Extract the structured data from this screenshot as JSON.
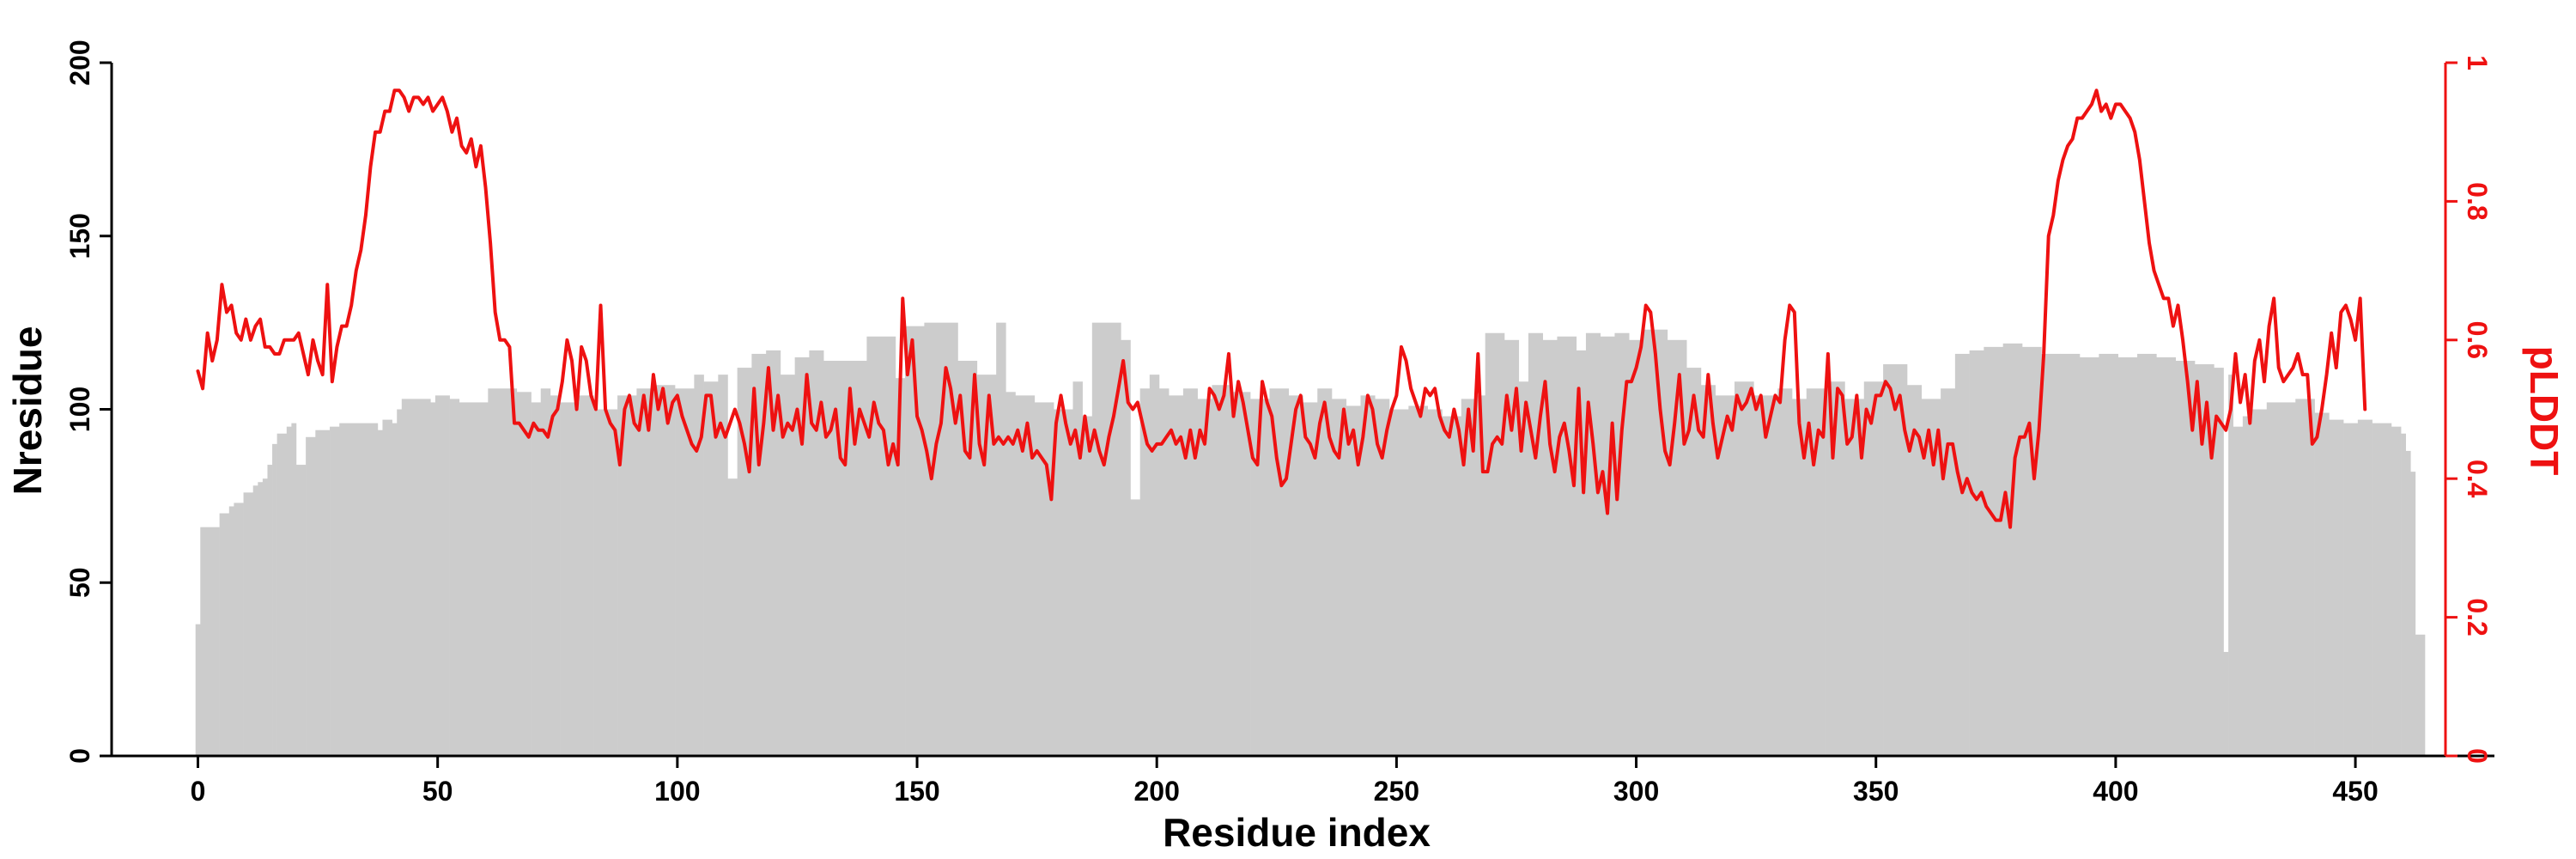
{
  "chart_data": {
    "type": "bar",
    "xlabel": "Residue index",
    "ylabel": "Nresidue",
    "y2label": "pLDDT",
    "xlim": [
      -18,
      479
    ],
    "ylim": [
      0,
      200
    ],
    "y2lim": [
      0,
      1
    ],
    "x_ticks": [
      0,
      50,
      100,
      150,
      200,
      250,
      300,
      350,
      400,
      450
    ],
    "y_ticks": [
      0,
      50,
      100,
      150,
      200
    ],
    "y2_ticks": [
      "0",
      "0.2",
      "0.4",
      "0.6",
      "0.8",
      "1"
    ],
    "grid": false,
    "legend": "none",
    "colors": {
      "bars": "#cccccc",
      "line": "#ee1111",
      "axis": "#000000",
      "right_axis": "#ee1111"
    },
    "series": [
      {
        "type": "bar",
        "axis": "left",
        "description_free": true,
        "segments": [
          [
            0,
            0,
            38
          ],
          [
            1,
            4,
            66
          ],
          [
            5,
            6,
            70
          ],
          [
            7,
            7,
            72
          ],
          [
            8,
            9,
            73
          ],
          [
            10,
            11,
            76
          ],
          [
            12,
            12,
            78
          ],
          [
            13,
            13,
            79
          ],
          [
            14,
            14,
            80
          ],
          [
            15,
            15,
            84
          ],
          [
            16,
            16,
            90
          ],
          [
            17,
            18,
            93
          ],
          [
            19,
            19,
            95
          ],
          [
            20,
            20,
            96
          ],
          [
            21,
            22,
            84
          ],
          [
            23,
            24,
            92
          ],
          [
            25,
            25,
            94
          ],
          [
            26,
            27,
            94
          ],
          [
            28,
            29,
            95
          ],
          [
            30,
            37,
            96
          ],
          [
            38,
            38,
            94
          ],
          [
            39,
            40,
            97
          ],
          [
            41,
            41,
            96
          ],
          [
            42,
            42,
            100
          ],
          [
            43,
            48,
            103
          ],
          [
            49,
            49,
            102
          ],
          [
            50,
            52,
            104
          ],
          [
            53,
            54,
            103
          ],
          [
            55,
            60,
            102
          ],
          [
            61,
            66,
            106
          ],
          [
            67,
            69,
            105
          ],
          [
            70,
            71,
            102
          ],
          [
            72,
            73,
            106
          ],
          [
            74,
            75,
            104
          ],
          [
            76,
            79,
            102
          ],
          [
            80,
            82,
            104
          ],
          [
            83,
            87,
            100
          ],
          [
            88,
            91,
            104
          ],
          [
            92,
            95,
            106
          ],
          [
            96,
            99,
            107
          ],
          [
            100,
            103,
            106
          ],
          [
            104,
            105,
            110
          ],
          [
            106,
            108,
            108
          ],
          [
            109,
            110,
            110
          ],
          [
            111,
            112,
            80
          ],
          [
            113,
            115,
            112
          ],
          [
            116,
            118,
            116
          ],
          [
            119,
            121,
            117
          ],
          [
            122,
            124,
            110
          ],
          [
            125,
            127,
            115
          ],
          [
            128,
            130,
            117
          ],
          [
            131,
            133,
            114
          ],
          [
            134,
            136,
            114
          ],
          [
            137,
            139,
            114
          ],
          [
            140,
            142,
            121
          ],
          [
            143,
            145,
            121
          ],
          [
            146,
            147,
            109
          ],
          [
            148,
            151,
            124
          ],
          [
            152,
            158,
            125
          ],
          [
            159,
            162,
            114
          ],
          [
            163,
            166,
            110
          ],
          [
            167,
            168,
            125
          ],
          [
            169,
            170,
            105
          ],
          [
            171,
            174,
            104
          ],
          [
            175,
            178,
            102
          ],
          [
            179,
            182,
            100
          ],
          [
            183,
            184,
            108
          ],
          [
            185,
            186,
            98
          ],
          [
            187,
            192,
            125
          ],
          [
            193,
            194,
            120
          ],
          [
            195,
            196,
            74
          ],
          [
            197,
            198,
            106
          ],
          [
            199,
            200,
            110
          ],
          [
            201,
            202,
            106
          ],
          [
            203,
            205,
            104
          ],
          [
            206,
            208,
            106
          ],
          [
            209,
            211,
            103
          ],
          [
            212,
            215,
            107
          ],
          [
            216,
            219,
            105
          ],
          [
            220,
            223,
            103
          ],
          [
            224,
            227,
            106
          ],
          [
            228,
            230,
            104
          ],
          [
            231,
            233,
            102
          ],
          [
            234,
            236,
            106
          ],
          [
            237,
            239,
            103
          ],
          [
            240,
            242,
            101
          ],
          [
            243,
            245,
            104
          ],
          [
            246,
            248,
            103
          ],
          [
            249,
            252,
            100
          ],
          [
            253,
            256,
            101
          ],
          [
            257,
            259,
            100
          ],
          [
            260,
            263,
            98
          ],
          [
            264,
            266,
            103
          ],
          [
            267,
            268,
            104
          ],
          [
            269,
            272,
            122
          ],
          [
            273,
            275,
            120
          ],
          [
            276,
            277,
            108
          ],
          [
            278,
            280,
            122
          ],
          [
            281,
            283,
            120
          ],
          [
            284,
            287,
            121
          ],
          [
            288,
            289,
            117
          ],
          [
            290,
            292,
            122
          ],
          [
            293,
            295,
            121
          ],
          [
            296,
            298,
            122
          ],
          [
            299,
            301,
            120
          ],
          [
            302,
            306,
            123
          ],
          [
            307,
            310,
            120
          ],
          [
            311,
            313,
            112
          ],
          [
            314,
            316,
            107
          ],
          [
            317,
            320,
            104
          ],
          [
            321,
            324,
            108
          ],
          [
            325,
            329,
            104
          ],
          [
            330,
            332,
            106
          ],
          [
            333,
            335,
            103
          ],
          [
            336,
            339,
            106
          ],
          [
            340,
            343,
            108
          ],
          [
            344,
            347,
            103
          ],
          [
            348,
            351,
            108
          ],
          [
            352,
            356,
            113
          ],
          [
            357,
            359,
            107
          ],
          [
            360,
            363,
            103
          ],
          [
            364,
            366,
            106
          ],
          [
            367,
            369,
            116
          ],
          [
            370,
            372,
            117
          ],
          [
            373,
            376,
            118
          ],
          [
            377,
            380,
            119
          ],
          [
            381,
            384,
            118
          ],
          [
            385,
            388,
            116
          ],
          [
            389,
            392,
            116
          ],
          [
            393,
            396,
            115
          ],
          [
            397,
            400,
            116
          ],
          [
            401,
            404,
            115
          ],
          [
            405,
            408,
            116
          ],
          [
            409,
            412,
            115
          ],
          [
            413,
            416,
            114
          ],
          [
            417,
            420,
            113
          ],
          [
            421,
            422,
            112
          ],
          [
            423,
            423,
            30
          ],
          [
            424,
            424,
            110
          ],
          [
            425,
            426,
            95
          ],
          [
            427,
            428,
            98
          ],
          [
            429,
            431,
            100
          ],
          [
            432,
            434,
            102
          ],
          [
            435,
            437,
            102
          ],
          [
            438,
            441,
            103
          ],
          [
            442,
            444,
            99
          ],
          [
            445,
            447,
            97
          ],
          [
            448,
            450,
            96
          ],
          [
            451,
            453,
            97
          ],
          [
            454,
            455,
            96
          ],
          [
            456,
            457,
            96
          ],
          [
            458,
            459,
            95
          ],
          [
            460,
            460,
            93
          ],
          [
            461,
            461,
            88
          ],
          [
            462,
            462,
            82
          ],
          [
            463,
            464,
            35
          ]
        ]
      },
      {
        "type": "line",
        "axis": "right",
        "name": "pLDDT",
        "values": [
          0.555,
          0.53,
          0.61,
          0.57,
          0.6,
          0.68,
          0.64,
          0.65,
          0.61,
          0.6,
          0.63,
          0.6,
          0.62,
          0.63,
          0.59,
          0.59,
          0.58,
          0.58,
          0.6,
          0.6,
          0.6,
          0.61,
          0.58,
          0.55,
          0.6,
          0.57,
          0.55,
          0.68,
          0.54,
          0.59,
          0.62,
          0.62,
          0.65,
          0.7,
          0.73,
          0.78,
          0.85,
          0.9,
          0.9,
          0.93,
          0.93,
          0.96,
          0.96,
          0.95,
          0.93,
          0.95,
          0.95,
          0.94,
          0.95,
          0.93,
          0.94,
          0.95,
          0.93,
          0.9,
          0.92,
          0.88,
          0.87,
          0.89,
          0.85,
          0.88,
          0.82,
          0.74,
          0.64,
          0.6,
          0.6,
          0.59,
          0.48,
          0.48,
          0.47,
          0.46,
          0.48,
          0.47,
          0.47,
          0.46,
          0.49,
          0.5,
          0.54,
          0.6,
          0.57,
          0.5,
          0.59,
          0.57,
          0.52,
          0.5,
          0.65,
          0.5,
          0.48,
          0.47,
          0.42,
          0.5,
          0.52,
          0.48,
          0.47,
          0.52,
          0.47,
          0.55,
          0.5,
          0.53,
          0.48,
          0.51,
          0.52,
          0.49,
          0.47,
          0.45,
          0.44,
          0.46,
          0.52,
          0.52,
          0.46,
          0.48,
          0.46,
          0.48,
          0.5,
          0.48,
          0.45,
          0.41,
          0.53,
          0.42,
          0.48,
          0.56,
          0.47,
          0.52,
          0.46,
          0.48,
          0.47,
          0.5,
          0.45,
          0.55,
          0.48,
          0.47,
          0.51,
          0.46,
          0.47,
          0.5,
          0.43,
          0.42,
          0.53,
          0.45,
          0.5,
          0.48,
          0.46,
          0.51,
          0.48,
          0.47,
          0.42,
          0.45,
          0.42,
          0.66,
          0.55,
          0.6,
          0.49,
          0.47,
          0.44,
          0.4,
          0.45,
          0.48,
          0.56,
          0.53,
          0.48,
          0.52,
          0.44,
          0.43,
          0.55,
          0.45,
          0.42,
          0.52,
          0.45,
          0.46,
          0.45,
          0.46,
          0.45,
          0.47,
          0.44,
          0.48,
          0.43,
          0.44,
          0.43,
          0.42,
          0.37,
          0.48,
          0.52,
          0.48,
          0.45,
          0.47,
          0.43,
          0.49,
          0.44,
          0.47,
          0.44,
          0.42,
          0.46,
          0.49,
          0.53,
          0.57,
          0.51,
          0.5,
          0.51,
          0.48,
          0.45,
          0.44,
          0.45,
          0.45,
          0.46,
          0.47,
          0.45,
          0.46,
          0.43,
          0.47,
          0.43,
          0.47,
          0.45,
          0.53,
          0.52,
          0.5,
          0.52,
          0.58,
          0.49,
          0.54,
          0.51,
          0.47,
          0.43,
          0.42,
          0.54,
          0.51,
          0.49,
          0.43,
          0.39,
          0.4,
          0.45,
          0.5,
          0.52,
          0.46,
          0.45,
          0.43,
          0.48,
          0.51,
          0.46,
          0.44,
          0.43,
          0.5,
          0.45,
          0.47,
          0.42,
          0.46,
          0.52,
          0.5,
          0.45,
          0.43,
          0.47,
          0.5,
          0.52,
          0.59,
          0.57,
          0.53,
          0.51,
          0.49,
          0.53,
          0.52,
          0.53,
          0.49,
          0.47,
          0.46,
          0.5,
          0.47,
          0.42,
          0.5,
          0.44,
          0.58,
          0.41,
          0.41,
          0.45,
          0.46,
          0.45,
          0.52,
          0.47,
          0.53,
          0.44,
          0.51,
          0.47,
          0.43,
          0.49,
          0.54,
          0.45,
          0.41,
          0.46,
          0.48,
          0.44,
          0.39,
          0.53,
          0.38,
          0.51,
          0.45,
          0.38,
          0.41,
          0.35,
          0.48,
          0.37,
          0.47,
          0.54,
          0.54,
          0.56,
          0.59,
          0.65,
          0.64,
          0.58,
          0.5,
          0.44,
          0.42,
          0.48,
          0.55,
          0.45,
          0.47,
          0.52,
          0.47,
          0.46,
          0.55,
          0.48,
          0.43,
          0.46,
          0.49,
          0.47,
          0.52,
          0.5,
          0.51,
          0.53,
          0.5,
          0.52,
          0.46,
          0.49,
          0.52,
          0.51,
          0.6,
          0.65,
          0.64,
          0.48,
          0.43,
          0.48,
          0.42,
          0.47,
          0.46,
          0.58,
          0.43,
          0.53,
          0.52,
          0.45,
          0.46,
          0.52,
          0.43,
          0.5,
          0.48,
          0.52,
          0.52,
          0.54,
          0.53,
          0.5,
          0.52,
          0.47,
          0.44,
          0.47,
          0.46,
          0.43,
          0.47,
          0.42,
          0.47,
          0.4,
          0.45,
          0.45,
          0.41,
          0.38,
          0.4,
          0.38,
          0.37,
          0.38,
          0.36,
          0.35,
          0.34,
          0.34,
          0.38,
          0.33,
          0.43,
          0.46,
          0.46,
          0.48,
          0.4,
          0.47,
          0.58,
          0.75,
          0.78,
          0.83,
          0.86,
          0.88,
          0.89,
          0.92,
          0.92,
          0.93,
          0.94,
          0.96,
          0.93,
          0.94,
          0.92,
          0.94,
          0.94,
          0.93,
          0.92,
          0.9,
          0.86,
          0.8,
          0.74,
          0.7,
          0.68,
          0.66,
          0.66,
          0.62,
          0.65,
          0.6,
          0.54,
          0.47,
          0.54,
          0.45,
          0.51,
          0.43,
          0.49,
          0.48,
          0.47,
          0.5,
          0.58,
          0.51,
          0.55,
          0.48,
          0.57,
          0.6,
          0.54,
          0.62,
          0.66,
          0.56,
          0.54,
          0.55,
          0.56,
          0.58,
          0.55,
          0.55,
          0.45,
          0.46,
          0.5,
          0.55,
          0.61,
          0.56,
          0.64,
          0.65,
          0.63,
          0.6,
          0.66,
          0.5
        ]
      }
    ]
  }
}
